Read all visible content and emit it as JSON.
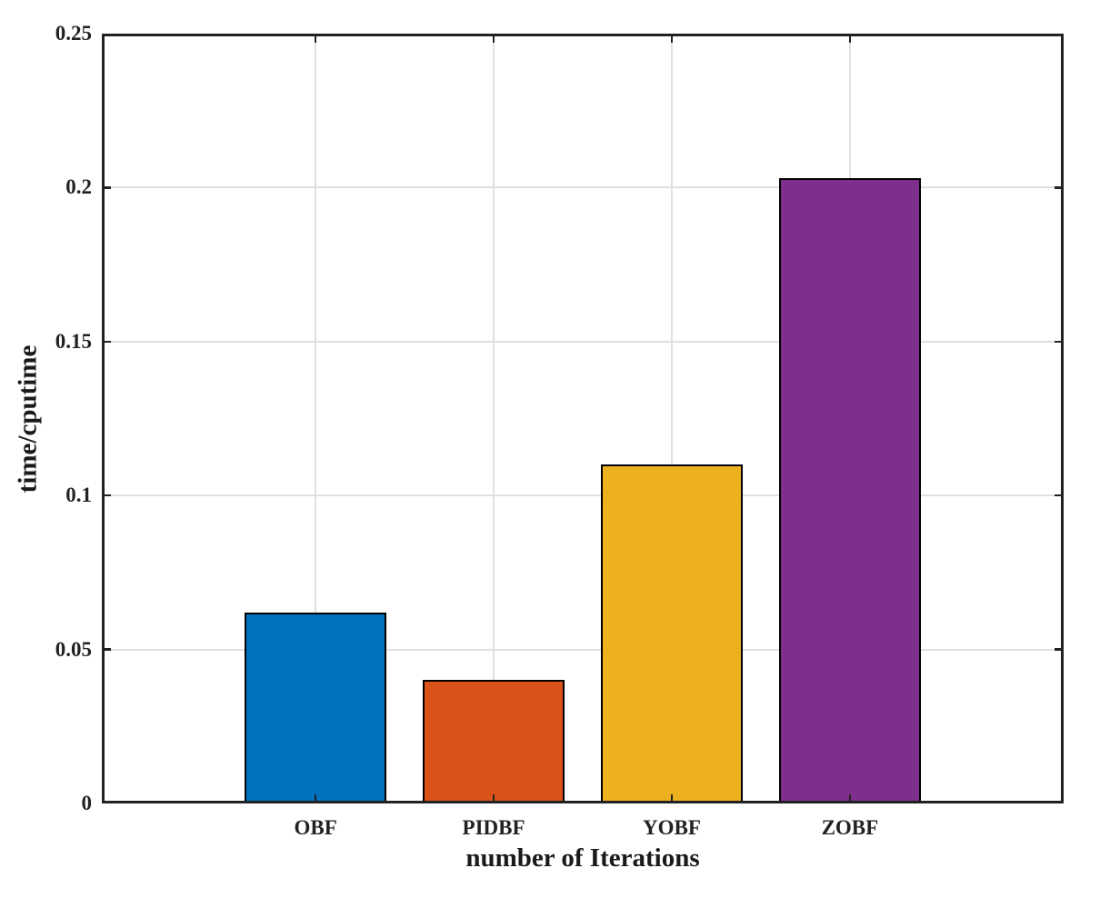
{
  "chart_data": {
    "type": "bar",
    "categories": [
      "OBF",
      "PIDBF",
      "YOBF",
      "ZOBF"
    ],
    "values": [
      0.062,
      0.04,
      0.11,
      0.203
    ],
    "bar_colors": [
      "#0072BD",
      "#D95319",
      "#EDB120",
      "#7E2F8E"
    ],
    "bar_edge_color": "#000000",
    "title": "",
    "xlabel": "number of Iterations",
    "ylabel": "time/cputime",
    "ylim": [
      0,
      0.25
    ],
    "yticks": [
      0,
      0.05,
      0.1,
      0.15,
      0.2,
      0.25
    ],
    "ytick_labels": [
      "0",
      "0.05",
      "0.1",
      "0.15",
      "0.2",
      "0.25"
    ],
    "grid": true,
    "legend": "none",
    "grid_color": "#e0e0e0",
    "axis_color": "#222222",
    "background_color": "#ffffff",
    "bar_width_fraction": 0.8
  }
}
